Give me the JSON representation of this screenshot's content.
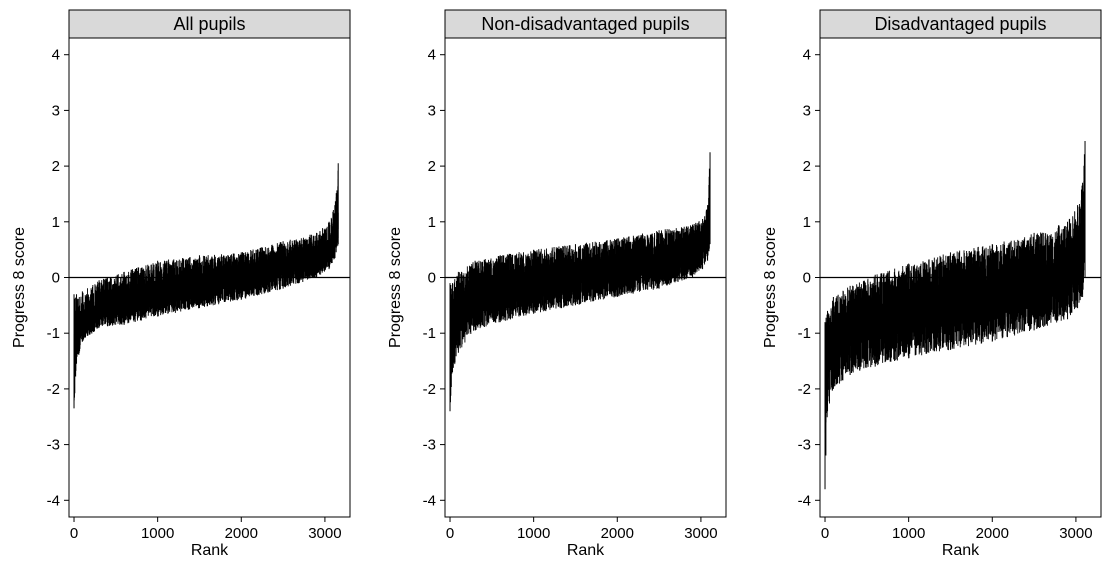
{
  "chart_data": [
    {
      "type": "bar",
      "title": "All pupils",
      "xlabel": "Rank",
      "ylabel": "Progress 8 score",
      "xlim": [
        -60,
        3300
      ],
      "ylim": [
        -4.3,
        4.3
      ],
      "xticks": [
        0,
        1000,
        2000,
        3000
      ],
      "yticks": [
        -4,
        -3,
        -2,
        -1,
        0,
        1,
        2,
        3,
        4
      ],
      "reference_line_y": 0,
      "n_schools": 3160,
      "summary": {
        "rank": [
          0,
          30,
          100,
          300,
          600,
          1000,
          1500,
          2000,
          2500,
          2900,
          3050,
          3120,
          3160
        ],
        "center": [
          -1.7,
          -1.05,
          -0.85,
          -0.6,
          -0.45,
          -0.32,
          -0.18,
          -0.02,
          0.15,
          0.33,
          0.48,
          0.65,
          0.9
        ],
        "lower": [
          -2.35,
          -1.55,
          -1.15,
          -0.9,
          -0.85,
          -0.7,
          -0.55,
          -0.4,
          -0.2,
          0.0,
          0.15,
          0.35,
          0.6
        ],
        "upper": [
          -0.3,
          -0.3,
          -0.25,
          -0.05,
          0.1,
          0.3,
          0.4,
          0.45,
          0.65,
          0.8,
          1.0,
          1.3,
          2.05
        ]
      },
      "series": [
        {
          "name": "",
          "values": []
        }
      ]
    },
    {
      "type": "bar",
      "title": "Non-disadvantaged pupils",
      "xlabel": "Rank",
      "ylabel": "Progress 8 score",
      "xlim": [
        -60,
        3300
      ],
      "ylim": [
        -4.3,
        4.3
      ],
      "xticks": [
        0,
        1000,
        2000,
        3000
      ],
      "yticks": [
        -4,
        -3,
        -2,
        -1,
        0,
        1,
        2,
        3,
        4
      ],
      "reference_line_y": 0,
      "n_schools": 3110,
      "summary": {
        "rank": [
          0,
          30,
          100,
          300,
          600,
          1000,
          1500,
          2000,
          2500,
          2900,
          3020,
          3080,
          3110
        ],
        "center": [
          -1.5,
          -0.85,
          -0.6,
          -0.4,
          -0.25,
          -0.12,
          0.02,
          0.15,
          0.3,
          0.48,
          0.6,
          0.75,
          0.95
        ],
        "lower": [
          -2.4,
          -1.7,
          -1.35,
          -0.95,
          -0.8,
          -0.65,
          -0.5,
          -0.35,
          -0.2,
          0.0,
          0.15,
          0.3,
          0.6
        ],
        "upper": [
          -0.1,
          -0.1,
          0.1,
          0.3,
          0.4,
          0.5,
          0.6,
          0.7,
          0.85,
          0.95,
          1.05,
          1.3,
          2.25
        ]
      },
      "series": [
        {
          "name": "",
          "values": []
        }
      ]
    },
    {
      "type": "bar",
      "title": "Disadvantaged pupils",
      "xlabel": "Rank",
      "ylabel": "Progress 8 score",
      "xlim": [
        -60,
        3300
      ],
      "ylim": [
        -4.3,
        4.3
      ],
      "xticks": [
        0,
        1000,
        2000,
        3000
      ],
      "yticks": [
        -4,
        -3,
        -2,
        -1,
        0,
        1,
        2,
        3,
        4
      ],
      "reference_line_y": 0,
      "n_schools": 3110,
      "summary": {
        "rank": [
          0,
          30,
          100,
          300,
          600,
          1000,
          1500,
          2000,
          2500,
          2900,
          3020,
          3080,
          3110
        ],
        "center": [
          -1.9,
          -1.3,
          -1.05,
          -0.82,
          -0.68,
          -0.55,
          -0.4,
          -0.25,
          -0.08,
          0.1,
          0.25,
          0.4,
          0.65
        ],
        "lower": [
          -3.8,
          -2.4,
          -2.0,
          -1.75,
          -1.6,
          -1.45,
          -1.3,
          -1.15,
          -0.95,
          -0.75,
          -0.55,
          -0.35,
          0.0
        ],
        "upper": [
          -0.8,
          -0.6,
          -0.35,
          -0.15,
          0.05,
          0.25,
          0.45,
          0.6,
          0.8,
          1.0,
          1.3,
          1.7,
          2.45
        ]
      },
      "series": [
        {
          "name": "",
          "values": []
        }
      ]
    }
  ]
}
